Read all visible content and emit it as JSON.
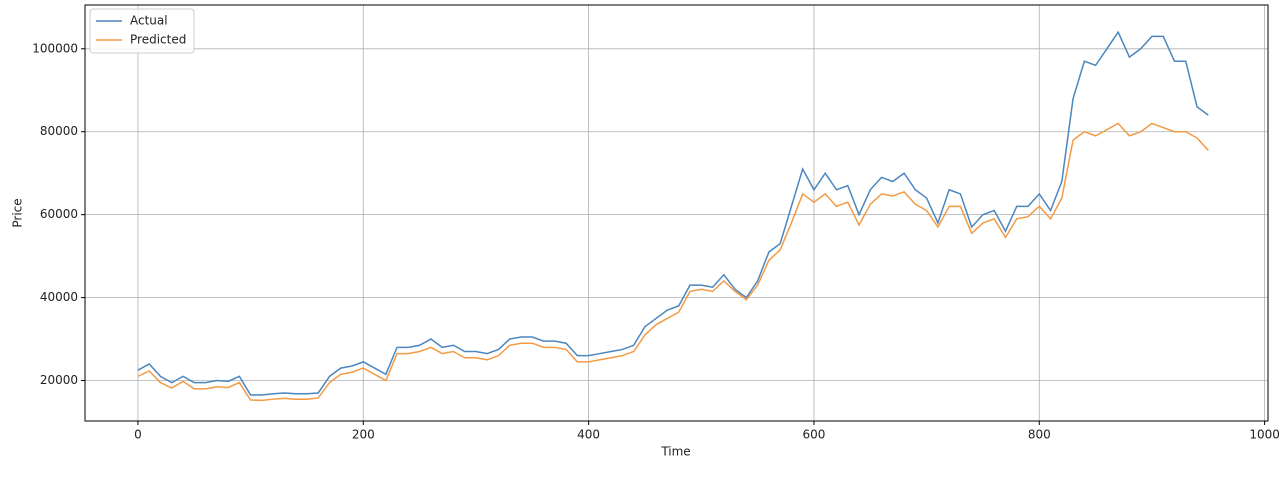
{
  "chart_data": {
    "type": "line",
    "x_label": "Time",
    "y_label": "Price",
    "x": [
      0,
      10,
      20,
      30,
      40,
      50,
      60,
      70,
      80,
      90,
      100,
      110,
      120,
      130,
      140,
      150,
      160,
      170,
      180,
      190,
      200,
      210,
      220,
      230,
      240,
      250,
      260,
      270,
      280,
      290,
      300,
      310,
      320,
      330,
      340,
      350,
      360,
      370,
      380,
      390,
      400,
      410,
      420,
      430,
      440,
      450,
      460,
      470,
      480,
      490,
      500,
      510,
      520,
      530,
      540,
      550,
      560,
      570,
      580,
      590,
      600,
      610,
      620,
      630,
      640,
      650,
      660,
      670,
      680,
      690,
      700,
      710,
      720,
      730,
      740,
      750,
      760,
      770,
      780,
      790,
      800,
      810,
      820,
      830,
      840,
      850,
      860,
      870,
      880,
      890,
      900,
      910,
      920,
      930,
      940,
      950
    ],
    "series": [
      {
        "name": "Actual",
        "color": "#4a86bf",
        "values": [
          22500,
          24000,
          21000,
          19500,
          21000,
          19500,
          19500,
          20000,
          19800,
          21000,
          16500,
          16500,
          16800,
          17000,
          16800,
          16800,
          17000,
          21000,
          23000,
          23500,
          24500,
          23000,
          21500,
          28000,
          28000,
          28500,
          30000,
          28000,
          28500,
          27000,
          27000,
          26500,
          27500,
          30000,
          30500,
          30500,
          29500,
          29500,
          29000,
          26000,
          26000,
          26500,
          27000,
          27500,
          28500,
          33000,
          35000,
          37000,
          38000,
          43000,
          43000,
          42500,
          45500,
          42000,
          40000,
          44000,
          51000,
          53000,
          62000,
          71000,
          66000,
          70000,
          66000,
          67000,
          60000,
          66000,
          69000,
          68000,
          70000,
          66000,
          64000,
          58000,
          66000,
          65000,
          57000,
          60000,
          61000,
          56000,
          62000,
          62000,
          65000,
          61000,
          68000,
          88000,
          97000,
          96000,
          100000,
          104000,
          98000,
          100000,
          103000,
          103000,
          97000,
          97000,
          86000,
          84000
        ]
      },
      {
        "name": "Predicted",
        "color": "#f39a45",
        "values": [
          21000,
          22300,
          19500,
          18200,
          19800,
          18000,
          18000,
          18500,
          18300,
          19500,
          15300,
          15200,
          15500,
          15700,
          15500,
          15500,
          15800,
          19500,
          21500,
          22000,
          23000,
          21500,
          20000,
          26500,
          26500,
          27000,
          28000,
          26500,
          27000,
          25500,
          25500,
          25000,
          26000,
          28500,
          29000,
          29000,
          28000,
          28000,
          27500,
          24500,
          24500,
          25000,
          25500,
          26000,
          27000,
          31000,
          33500,
          35000,
          36500,
          41500,
          42000,
          41500,
          44000,
          41500,
          39500,
          43000,
          49000,
          51500,
          58000,
          65000,
          63000,
          65000,
          62000,
          63000,
          57500,
          62500,
          65000,
          64500,
          65500,
          62500,
          61000,
          57000,
          62000,
          62000,
          55500,
          58000,
          59000,
          54500,
          59000,
          59500,
          62000,
          59000,
          64000,
          78000,
          80000,
          79000,
          80500,
          82000,
          79000,
          80000,
          82000,
          81000,
          80000,
          80000,
          78500,
          75500
        ]
      }
    ],
    "xlim": [
      -47,
      1003
    ],
    "ylim": [
      10240,
      110560
    ],
    "xticks": [
      0,
      200,
      400,
      600,
      800,
      1000
    ],
    "yticks": [
      20000,
      40000,
      60000,
      80000,
      100000
    ],
    "grid": true,
    "legend": "upper-left"
  }
}
